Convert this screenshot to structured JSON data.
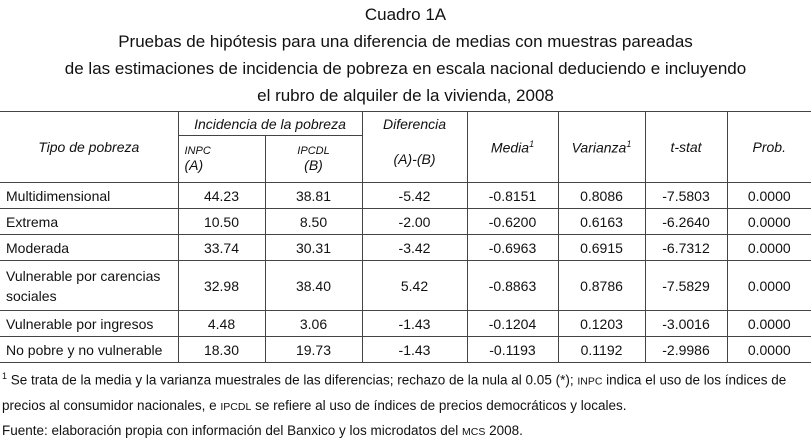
{
  "title": {
    "label": "Cuadro 1A",
    "lines": [
      "Pruebas de hipótesis para una diferencia de medias con muestras pareadas",
      "de las estimaciones de incidencia de pobreza en escala nacional deduciendo e incluyendo",
      "el rubro de alquiler de la vivienda, 2008"
    ]
  },
  "table": {
    "header": {
      "tipo": "Tipo de pobreza",
      "incidencia": "Incidencia de la pobreza",
      "inpc": "INPC",
      "a": "(A)",
      "ipcdl": "IPCDL",
      "b": "(B)",
      "diferencia": "Diferencia",
      "ab": "(A)-(B)",
      "media": "Media",
      "varianza": "Varianza",
      "sup": "1",
      "tstat": "t-stat",
      "prob": "Prob."
    },
    "rows": [
      [
        "Multidimensional",
        "44.23",
        "38.81",
        "-5.42",
        "-0.8151",
        "0.8086",
        "-7.5803",
        "0.0000"
      ],
      [
        "Extrema",
        "10.50",
        "8.50",
        "-2.00",
        "-0.6200",
        "0.6163",
        "-6.2640",
        "0.0000"
      ],
      [
        "Moderada",
        "33.74",
        "30.31",
        "-3.42",
        "-0.6963",
        "0.6915",
        "-6.7312",
        "0.0000"
      ],
      [
        "Vulnerable por carencias sociales",
        "32.98",
        "38.40",
        "5.42",
        "-0.8863",
        "0.8786",
        "-7.5829",
        "0.0000"
      ],
      [
        "Vulnerable por ingresos",
        "4.48",
        "3.06",
        "-1.43",
        "-0.1204",
        "0.1203",
        "-3.0016",
        "0.0000"
      ],
      [
        "No pobre y no vulnerable",
        "18.30",
        "19.73",
        "-1.43",
        "-0.1193",
        "0.1192",
        "-2.9986",
        "0.0000"
      ]
    ]
  },
  "notes": {
    "sup": "1",
    "text1": " Se trata de la media y la varianza muestrales de las diferencias; rechazo de la nula al 0.05 (*); ",
    "abbr1": "INPC",
    "text2": " indica el uso de los índices de precios al consumidor nacionales, e ",
    "abbr2": "IPCDL",
    "text3": " se refiere al uso de índices de precios democráticos y locales.",
    "source1": "Fuente: elaboración propia con información del Banxico y los microdatos del ",
    "abbr3": "MCS",
    "source2": " 2008."
  }
}
